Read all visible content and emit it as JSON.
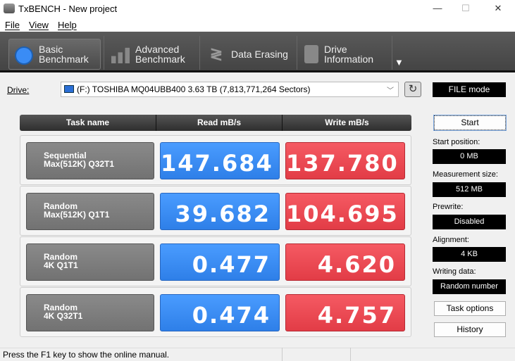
{
  "window": {
    "title": "TxBENCH - New project",
    "minimize": "—",
    "maximize": "☐",
    "close": "✕"
  },
  "menu": [
    "File",
    "View",
    "Help"
  ],
  "toolbar": {
    "tabs": [
      {
        "label1": "Basic",
        "label2": "Benchmark",
        "icon": "stopwatch-icon",
        "active": true
      },
      {
        "label1": "Advanced",
        "label2": "Benchmark",
        "icon": "bar-chart-icon"
      },
      {
        "label1": "Data Erasing",
        "label2": "",
        "icon": "eraser-icon"
      },
      {
        "label1": "Drive",
        "label2": "Information",
        "icon": "drive-info-icon"
      }
    ],
    "more": "▼"
  },
  "drive": {
    "label": "Drive:",
    "value": "(F:) TOSHIBA MQ04UBB400  3.63 TB (7,813,771,264 Sectors)",
    "mode": "FILE mode"
  },
  "table": {
    "headers": [
      "Task name",
      "Read mB/s",
      "Write mB/s"
    ],
    "rows": [
      {
        "task1": "Sequential",
        "task2": "Max(512K) Q32T1",
        "read": "147.684",
        "write": "137.780"
      },
      {
        "task1": "Random",
        "task2": "Max(512K) Q1T1",
        "read": "39.682",
        "write": "104.695"
      },
      {
        "task1": "Random",
        "task2": "4K Q1T1",
        "read": "0.477",
        "write": "4.620"
      },
      {
        "task1": "Random",
        "task2": "4K Q32T1",
        "read": "0.474",
        "write": "4.757"
      }
    ]
  },
  "side": {
    "start": "Start",
    "start_position_label": "Start position:",
    "start_position": "0 MB",
    "measurement_size_label": "Measurement size:",
    "measurement_size": "512 MB",
    "prewrite_label": "Prewrite:",
    "prewrite": "Disabled",
    "alignment_label": "Alignment:",
    "alignment": "4 KB",
    "writing_data_label": "Writing data:",
    "writing_data": "Random number",
    "task_options": "Task options",
    "history": "History"
  },
  "status": "Press the F1 key to show the online manual.",
  "colors": {
    "read": "#3a8cf5",
    "write": "#ec4a54",
    "toolbar": "#4d4d4d"
  }
}
